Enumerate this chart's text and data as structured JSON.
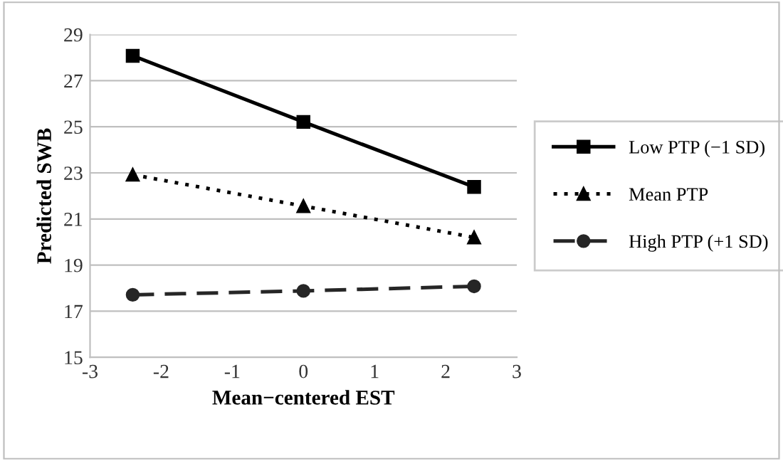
{
  "chart_data": {
    "type": "line",
    "xlabel": "Mean−centered EST",
    "ylabel": "Predicted SWB",
    "x": [
      -2.4,
      0,
      2.4
    ],
    "series": [
      {
        "name": "Low PTP (−1 SD)",
        "color": "#000000",
        "values": [
          28.08,
          25.21,
          22.39
        ],
        "marker": "square",
        "line_style": "solid"
      },
      {
        "name": "Mean PTP",
        "color": "#000000",
        "values": [
          22.92,
          21.56,
          20.2
        ],
        "marker": "triangle",
        "line_style": "dotted"
      },
      {
        "name": "High PTP (+1 SD)",
        "color": "#262626",
        "values": [
          17.71,
          17.88,
          18.08
        ],
        "marker": "circle",
        "line_style": "dashed"
      }
    ],
    "xlim": [
      -3,
      3
    ],
    "xticks": [
      -3,
      -2,
      -1,
      0,
      1,
      2,
      3
    ],
    "ylim": [
      15,
      29
    ],
    "yticks": [
      15,
      17,
      19,
      21,
      23,
      25,
      27,
      29
    ],
    "grid": "y",
    "legend": "right"
  }
}
